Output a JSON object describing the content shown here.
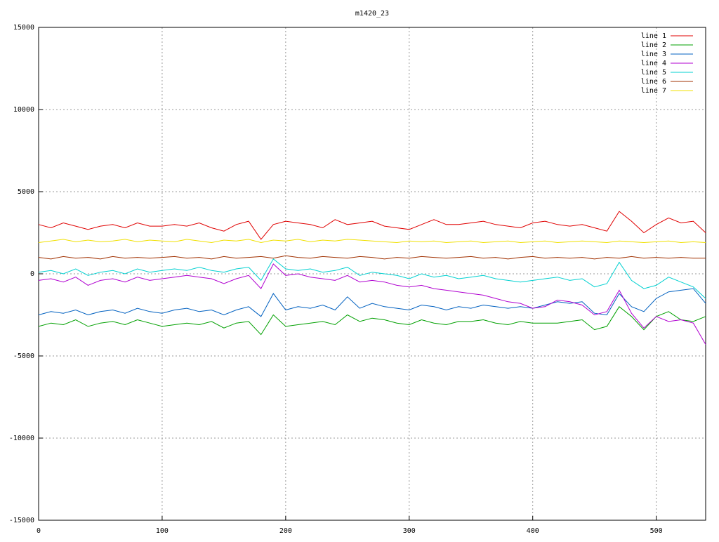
{
  "chart_data": {
    "type": "line",
    "title": "m1420_23",
    "x": [
      0,
      10,
      20,
      30,
      40,
      50,
      60,
      70,
      80,
      90,
      100,
      110,
      120,
      130,
      140,
      150,
      160,
      170,
      180,
      190,
      200,
      210,
      220,
      230,
      240,
      250,
      260,
      270,
      280,
      290,
      300,
      310,
      320,
      330,
      340,
      350,
      360,
      370,
      380,
      390,
      400,
      410,
      420,
      430,
      440,
      450,
      460,
      470,
      480,
      490,
      500,
      510,
      520,
      530,
      540
    ],
    "xlim": [
      0,
      540
    ],
    "xticks": [
      0,
      100,
      200,
      300,
      400,
      500
    ],
    "ylim": [
      -15000,
      15000
    ],
    "yticks": [
      -15000,
      -10000,
      -5000,
      0,
      5000,
      10000,
      15000
    ],
    "grid": true,
    "legend": "top-right",
    "series": [
      {
        "name": "line 1",
        "color": "#e00000",
        "values": [
          3000,
          2800,
          3100,
          2900,
          2700,
          2900,
          3000,
          2800,
          3100,
          2900,
          2900,
          3000,
          2900,
          3100,
          2800,
          2600,
          3000,
          3200,
          2100,
          3000,
          3200,
          3100,
          3000,
          2800,
          3300,
          3000,
          3100,
          3200,
          2900,
          2800,
          2700,
          3000,
          3300,
          3000,
          3000,
          3100,
          3200,
          3000,
          2900,
          2800,
          3100,
          3200,
          3000,
          2900,
          3000,
          2800,
          2600,
          3800,
          3200,
          2500,
          3000,
          3400,
          3100,
          3200,
          2500
        ]
      },
      {
        "name": "line 2",
        "color": "#00a000",
        "values": [
          -3200,
          -3000,
          -3100,
          -2800,
          -3200,
          -3000,
          -2900,
          -3100,
          -2800,
          -3000,
          -3200,
          -3100,
          -3000,
          -3100,
          -2900,
          -3300,
          -3000,
          -2900,
          -3700,
          -2500,
          -3200,
          -3100,
          -3000,
          -2900,
          -3100,
          -2500,
          -2900,
          -2700,
          -2800,
          -3000,
          -3100,
          -2800,
          -3000,
          -3100,
          -2900,
          -2900,
          -2800,
          -3000,
          -3100,
          -2900,
          -3000,
          -3000,
          -3000,
          -2900,
          -2800,
          -3400,
          -3200,
          -2000,
          -2600,
          -3400,
          -2600,
          -2300,
          -2800,
          -2900,
          -2600
        ]
      },
      {
        "name": "line 3",
        "color": "#0060c0",
        "values": [
          -2500,
          -2300,
          -2400,
          -2200,
          -2500,
          -2300,
          -2200,
          -2400,
          -2100,
          -2300,
          -2400,
          -2200,
          -2100,
          -2300,
          -2200,
          -2500,
          -2200,
          -2000,
          -2600,
          -1200,
          -2200,
          -2000,
          -2100,
          -1900,
          -2200,
          -1400,
          -2100,
          -1800,
          -2000,
          -2100,
          -2200,
          -1900,
          -2000,
          -2200,
          -2000,
          -2100,
          -1900,
          -2000,
          -2100,
          -2000,
          -2100,
          -1900,
          -1700,
          -1800,
          -1700,
          -2400,
          -2500,
          -1200,
          -2000,
          -2300,
          -1500,
          -1100,
          -1000,
          -900,
          -1800
        ]
      },
      {
        "name": "line 4",
        "color": "#b000d0",
        "values": [
          -400,
          -300,
          -500,
          -200,
          -700,
          -400,
          -300,
          -500,
          -200,
          -400,
          -300,
          -200,
          -100,
          -200,
          -300,
          -600,
          -300,
          -100,
          -900,
          600,
          -100,
          0,
          -200,
          -300,
          -400,
          -100,
          -500,
          -400,
          -500,
          -700,
          -800,
          -700,
          -900,
          -1000,
          -1100,
          -1200,
          -1300,
          -1500,
          -1700,
          -1800,
          -2100,
          -2000,
          -1600,
          -1700,
          -1900,
          -2500,
          -2300,
          -1000,
          -2400,
          -3300,
          -2600,
          -2900,
          -2800,
          -3000,
          -4300
        ]
      },
      {
        "name": "line 5",
        "color": "#00d0d0",
        "values": [
          100,
          200,
          0,
          300,
          -100,
          100,
          200,
          0,
          300,
          100,
          200,
          300,
          200,
          400,
          200,
          100,
          300,
          400,
          -400,
          900,
          300,
          200,
          300,
          100,
          200,
          400,
          -100,
          100,
          0,
          -100,
          -300,
          0,
          -200,
          -100,
          -300,
          -200,
          -100,
          -300,
          -400,
          -500,
          -400,
          -300,
          -200,
          -400,
          -300,
          -800,
          -600,
          700,
          -400,
          -900,
          -700,
          -200,
          -500,
          -800,
          -1500
        ]
      },
      {
        "name": "line 6",
        "color": "#a03000",
        "values": [
          1000,
          900,
          1050,
          950,
          1000,
          900,
          1050,
          950,
          1000,
          950,
          1000,
          1050,
          950,
          1000,
          900,
          1050,
          950,
          1000,
          1050,
          950,
          1100,
          1000,
          950,
          1050,
          1000,
          950,
          1050,
          1000,
          900,
          1000,
          950,
          1050,
          1000,
          950,
          1000,
          1050,
          950,
          1000,
          900,
          1000,
          1050,
          950,
          1000,
          950,
          1000,
          900,
          1000,
          950,
          1050,
          950,
          1000,
          950,
          1000,
          950,
          950
        ]
      },
      {
        "name": "line 7",
        "color": "#f0e000",
        "values": [
          1900,
          2000,
          2100,
          1950,
          2050,
          1950,
          2000,
          2100,
          1950,
          2050,
          2000,
          1950,
          2100,
          2000,
          1900,
          2050,
          2000,
          2100,
          1900,
          2050,
          2000,
          2100,
          1950,
          2050,
          2000,
          2100,
          2050,
          2000,
          1950,
          1900,
          2000,
          1950,
          2000,
          1900,
          1950,
          2000,
          1900,
          1950,
          2000,
          1900,
          1950,
          2000,
          1900,
          1950,
          2000,
          1950,
          1900,
          2000,
          1950,
          1900,
          1950,
          2000,
          1900,
          1950,
          1900
        ]
      }
    ]
  }
}
